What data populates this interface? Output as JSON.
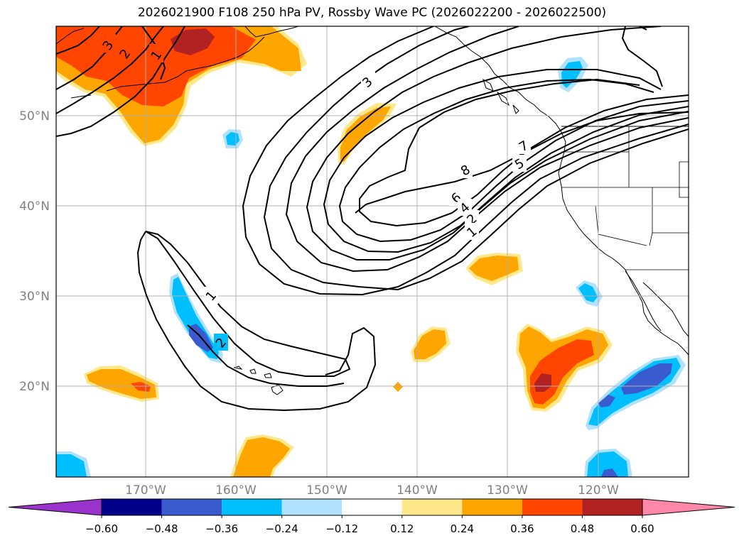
{
  "title": "2026021900 F108 250 hPa PV, Rossby Wave PC (2026022200 - 2026022500)",
  "map": {
    "lon_labels": [
      "170°W",
      "160°W",
      "150°W",
      "140°W",
      "130°W",
      "120°W"
    ],
    "lat_labels": [
      "50°N",
      "40°N",
      "30°N",
      "20°N"
    ],
    "contour_labels": [
      "1",
      "2",
      "3",
      "4",
      "5",
      "6",
      "7",
      "8",
      "1",
      "2",
      "3",
      "1",
      "2"
    ]
  },
  "colorbar": {
    "ticks": [
      "−0.60",
      "−0.48",
      "−0.36",
      "−0.24",
      "−0.12",
      "0.12",
      "0.24",
      "0.36",
      "0.48",
      "0.60"
    ],
    "colors": [
      "#9933cc",
      "#00008b",
      "#3a5bd0",
      "#00bfff",
      "#b0e2ff",
      "#ffffff",
      "#ffe88a",
      "#ffa500",
      "#ff4500",
      "#b22222",
      "#ff88aa"
    ]
  },
  "colors": {
    "lightblue": "#b0e2ff",
    "cyan": "#00bfff",
    "blue": "#3a5bd0",
    "navy": "#00008b",
    "lightyellow": "#ffe88a",
    "orange": "#ffa500",
    "redorange": "#ff4500",
    "darkred": "#b22222",
    "grid": "#b0b0b0",
    "axis_label": "#808080"
  }
}
